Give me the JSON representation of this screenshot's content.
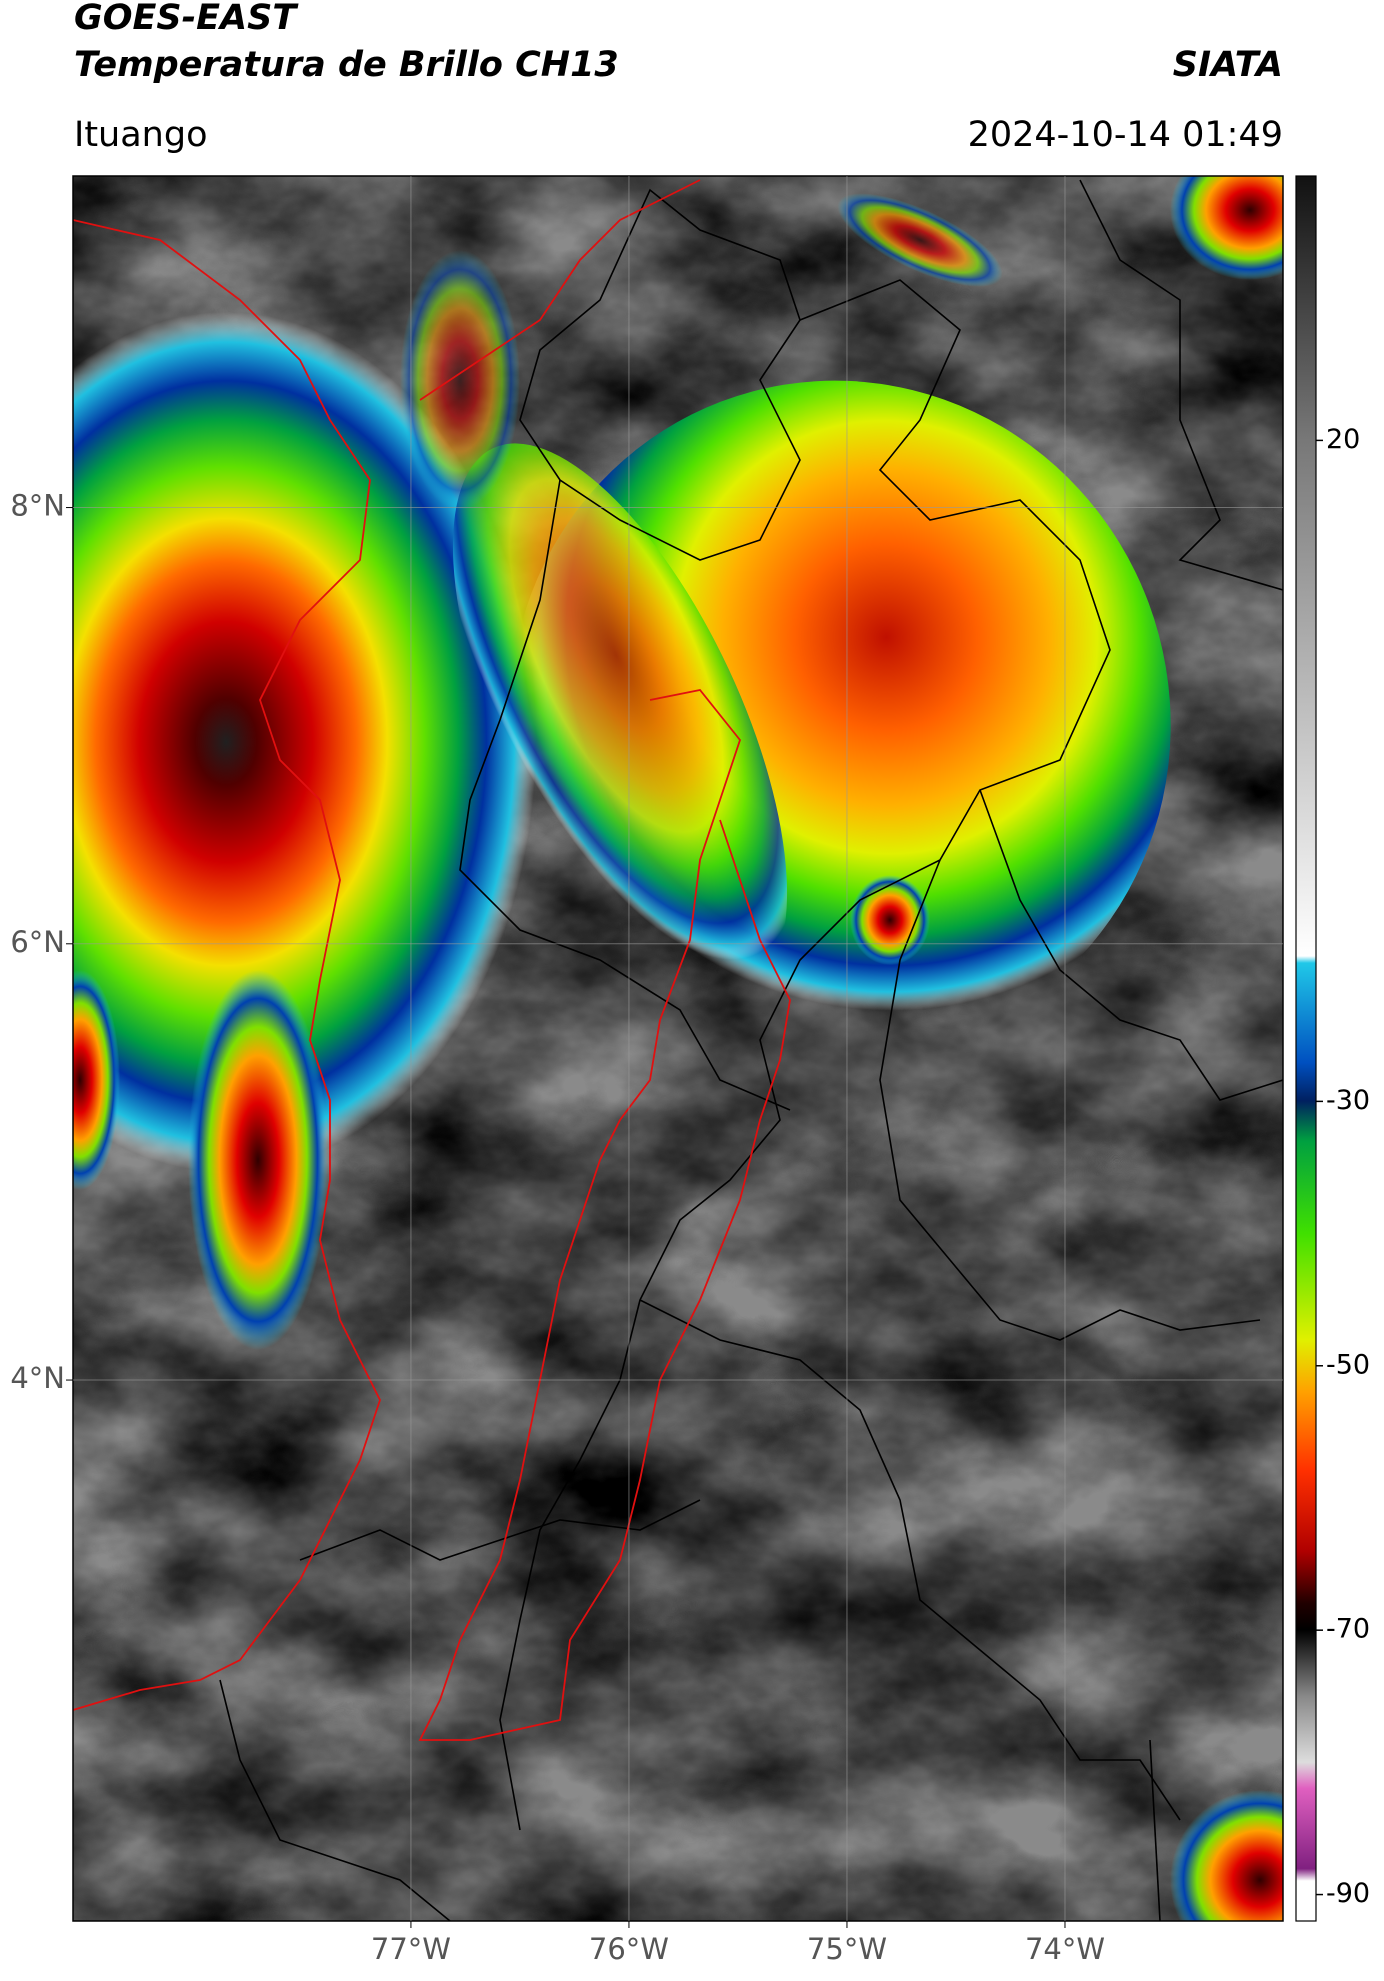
{
  "header": {
    "title": "GOES-EAST",
    "subtitle": "Temperatura de Brillo CH13",
    "source": "SIATA",
    "location": "Ituango",
    "datetime": "2024-10-14 01:49"
  },
  "map": {
    "xlim": [
      -78.55,
      -73
    ],
    "ylim": [
      1.52,
      9.52
    ],
    "xticks": [
      {
        "value": -77,
        "label": "77°W"
      },
      {
        "value": -76,
        "label": "76°W"
      },
      {
        "value": -75,
        "label": "75°W"
      },
      {
        "value": -74,
        "label": "74°W"
      }
    ],
    "yticks": [
      {
        "value": 8,
        "label": "8°N"
      },
      {
        "value": 6,
        "label": "6°N"
      },
      {
        "value": 4,
        "label": "4°N"
      }
    ],
    "grid": true
  },
  "colorbar": {
    "clim": [
      -92,
      40
    ],
    "ticks": [
      20,
      -30,
      -50,
      -70,
      -90
    ]
  }
}
